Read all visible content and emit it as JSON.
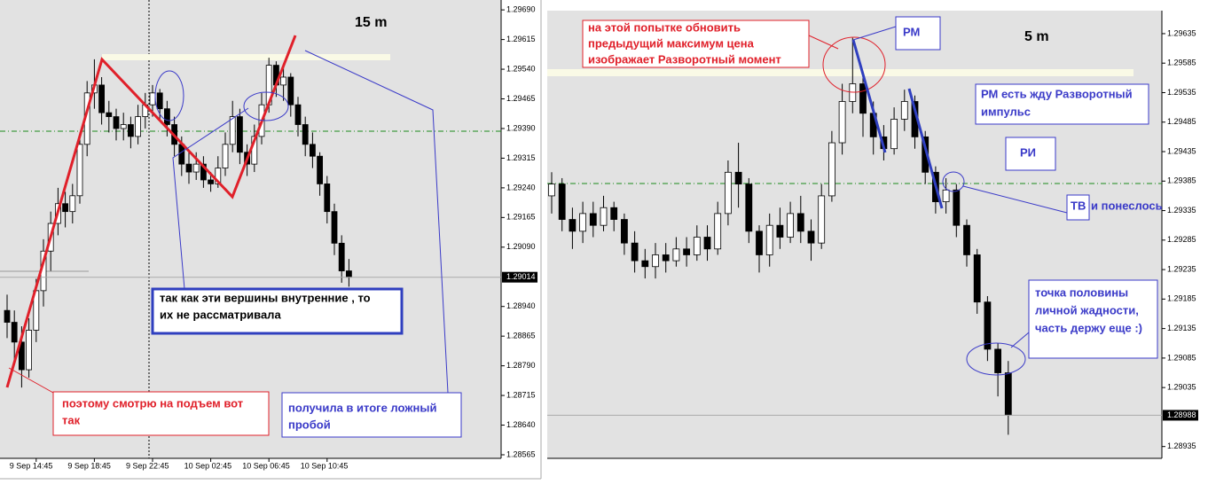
{
  "chart_data": [
    {
      "type": "candlestick",
      "title": "15 m",
      "categories": [
        null,
        null,
        null,
        null,
        "9 Sep 14:45",
        null,
        null,
        null,
        null,
        null,
        null,
        null,
        "9 Sep 18:45",
        null,
        null,
        null,
        null,
        null,
        null,
        null,
        "9 Sep 22:45",
        null,
        null,
        null,
        null,
        null,
        null,
        null,
        "10 Sep 02:45",
        null,
        null,
        null,
        null,
        null,
        null,
        null,
        "10 Sep 06:45",
        null,
        null,
        null,
        null,
        null,
        null,
        null,
        "10 Sep 10:45",
        null,
        null,
        null
      ],
      "open": [
        1.2893,
        1.289,
        1.2885,
        1.2878,
        1.2888,
        1.2898,
        1.2908,
        1.2915,
        1.292,
        1.2918,
        1.2922,
        1.2935,
        1.2948,
        1.295,
        1.2943,
        1.2942,
        1.2939,
        1.294,
        1.2937,
        1.2942,
        1.2945,
        1.2948,
        1.2944,
        1.294,
        1.2935,
        1.293,
        1.2928,
        1.293,
        1.2926,
        1.2925,
        1.2929,
        1.2935,
        1.2942,
        1.2933,
        1.293,
        1.2937,
        1.2945,
        1.2955,
        1.295,
        1.2952,
        1.2945,
        1.294,
        1.2935,
        1.2932,
        1.2925,
        1.2918,
        1.291,
        1.2903
      ],
      "high": [
        1.2897,
        1.2893,
        1.2889,
        1.2891,
        1.2901,
        1.2911,
        1.2918,
        1.2924,
        1.2923,
        1.2925,
        1.2938,
        1.2951,
        1.29565,
        1.2952,
        1.2946,
        1.2944,
        1.2943,
        1.2942,
        1.2945,
        1.2948,
        1.295,
        1.2949,
        1.2946,
        1.2942,
        1.2937,
        1.2933,
        1.2933,
        1.2932,
        1.2928,
        1.2932,
        1.2938,
        1.2946,
        1.2944,
        1.2935,
        1.294,
        1.2948,
        1.29569,
        1.2956,
        1.2955,
        1.2953,
        1.2947,
        1.2942,
        1.2938,
        1.2933,
        1.2927,
        1.292,
        1.2912,
        1.2906
      ],
      "low": [
        1.2886,
        1.288,
        1.28735,
        1.2876,
        1.2885,
        1.2894,
        1.2903,
        1.2912,
        1.2914,
        1.2915,
        1.292,
        1.2932,
        1.2944,
        1.294,
        1.2938,
        1.2936,
        1.2936,
        1.2934,
        1.2935,
        1.2939,
        1.2942,
        1.2941,
        1.2937,
        1.2932,
        1.2927,
        1.2925,
        1.2926,
        1.2924,
        1.2923,
        1.2924,
        1.2927,
        1.2933,
        1.293,
        1.2927,
        1.2928,
        1.2935,
        1.2943,
        1.2947,
        1.2946,
        1.2942,
        1.2937,
        1.2932,
        1.2929,
        1.2922,
        1.2915,
        1.2907,
        1.29,
        1.2899
      ],
      "close": [
        1.289,
        1.2885,
        1.2878,
        1.2888,
        1.2898,
        1.2908,
        1.2915,
        1.292,
        1.2918,
        1.2922,
        1.2935,
        1.2948,
        1.295,
        1.2943,
        1.2942,
        1.2939,
        1.294,
        1.2937,
        1.2942,
        1.2945,
        1.2948,
        1.2944,
        1.294,
        1.2935,
        1.293,
        1.2928,
        1.293,
        1.2926,
        1.2925,
        1.2929,
        1.2935,
        1.2942,
        1.2933,
        1.293,
        1.2937,
        1.2945,
        1.2955,
        1.295,
        1.2952,
        1.2945,
        1.294,
        1.2935,
        1.2932,
        1.2925,
        1.2918,
        1.291,
        1.2903,
        1.29014
      ],
      "ylim": [
        1.28556,
        1.29715
      ],
      "yticks": [
        {
          "value": 1.2969,
          "label": "1.29690"
        },
        1.29615,
        {
          "value": 1.2954,
          "label": "1.29540"
        },
        1.29465,
        {
          "value": 1.2939,
          "label": "1.29390"
        },
        1.29315,
        {
          "value": 1.2924,
          "label": "1.29240"
        },
        1.29165,
        {
          "value": 1.2909,
          "label": "1.29090"
        },
        {
          "value": 1.2894,
          "label": "1.28940"
        },
        1.28865,
        {
          "value": 1.2879,
          "label": "1.28790"
        },
        1.28715,
        {
          "value": 1.2864,
          "label": "1.28640"
        },
        1.28565
      ],
      "last_price": 1.29014,
      "annotations": [
        {
          "lines": [
            "так как эти вершины внутренние , то",
            "их не рассматривала"
          ]
        },
        {
          "lines": [
            "поэтому смотрю на подъем вот",
            "так"
          ]
        },
        {
          "lines": [
            "получила в итоге ложный",
            "пробой"
          ]
        }
      ]
    },
    {
      "type": "candlestick",
      "title": "5 m",
      "open": [
        1.2936,
        1.2938,
        1.2932,
        1.293,
        1.2933,
        1.2931,
        1.2934,
        1.2932,
        1.2928,
        1.2925,
        1.2924,
        1.2926,
        1.2925,
        1.2927,
        1.2926,
        1.2929,
        1.2927,
        1.2933,
        1.294,
        1.2938,
        1.293,
        1.2926,
        1.2931,
        1.2929,
        1.2933,
        1.293,
        1.2928,
        1.2936,
        1.2945,
        1.2952,
        1.2955,
        1.295,
        1.2946,
        1.2944,
        1.2949,
        1.2952,
        1.2946,
        1.294,
        1.2935,
        1.2937,
        1.2931,
        1.2926,
        1.2918,
        1.291,
        1.2906
      ],
      "high": [
        1.294,
        1.2939,
        1.2934,
        1.2935,
        1.2935,
        1.2936,
        1.2935,
        1.2933,
        1.293,
        1.2927,
        1.2928,
        1.2928,
        1.2929,
        1.2929,
        1.2931,
        1.2931,
        1.2935,
        1.2942,
        1.2945,
        1.2939,
        1.2931,
        1.2933,
        1.2934,
        1.2935,
        1.2936,
        1.2932,
        1.2938,
        1.2947,
        1.2955,
        1.29628,
        1.2957,
        1.2952,
        1.2948,
        1.2951,
        1.2954,
        1.2953,
        1.2947,
        1.2941,
        1.2939,
        1.2938,
        1.2932,
        1.2927,
        1.2919,
        1.2911,
        1.2908
      ],
      "low": [
        1.2933,
        1.293,
        1.2927,
        1.2928,
        1.2929,
        1.293,
        1.293,
        1.2926,
        1.2923,
        1.2922,
        1.2922,
        1.2923,
        1.2924,
        1.2924,
        1.2925,
        1.2925,
        1.2926,
        1.2931,
        1.2934,
        1.2928,
        1.2923,
        1.2924,
        1.2927,
        1.2928,
        1.2928,
        1.2925,
        1.2927,
        1.2935,
        1.2943,
        1.295,
        1.2946,
        1.2943,
        1.2942,
        1.2943,
        1.2947,
        1.2944,
        1.2938,
        1.2933,
        1.2933,
        1.2929,
        1.2924,
        1.2916,
        1.2908,
        1.2902,
        1.28955
      ],
      "close": [
        1.2938,
        1.2932,
        1.293,
        1.2933,
        1.2931,
        1.2934,
        1.2932,
        1.2928,
        1.2925,
        1.2924,
        1.2926,
        1.2925,
        1.2927,
        1.2926,
        1.2929,
        1.2927,
        1.2933,
        1.294,
        1.2938,
        1.293,
        1.2926,
        1.2931,
        1.2929,
        1.2933,
        1.293,
        1.2928,
        1.2936,
        1.2945,
        1.2952,
        1.2955,
        1.295,
        1.2946,
        1.2944,
        1.2949,
        1.2952,
        1.2946,
        1.294,
        1.2935,
        1.2937,
        1.2931,
        1.2926,
        1.2918,
        1.291,
        1.2906,
        1.28988
      ],
      "ylim": [
        1.28915,
        1.29674
      ],
      "yticks": [
        1.29635,
        1.29585,
        1.29535,
        1.29485,
        1.29435,
        1.29385,
        1.29335,
        1.29285,
        1.29235,
        1.29185,
        1.29135,
        1.29085,
        1.29035,
        1.28935
      ],
      "last_price": 1.28988,
      "annotations": [
        {
          "lines": [
            "на  этой попытке обновить",
            "предыдущий максимум цена",
            "изображает Разворотный момент"
          ]
        },
        {
          "lines": [
            "РМ"
          ]
        },
        {
          "lines": [
            "РМ есть жду Разворотный",
            "импульс"
          ]
        },
        {
          "lines": [
            "РИ"
          ]
        },
        {
          "lines": [
            "ТВ"
          ]
        },
        {
          "lines": [
            "и понеслось"
          ]
        },
        {
          "lines": [
            "точка половины",
            "личной жадности,",
            "часть держу еще :)"
          ]
        }
      ]
    }
  ]
}
